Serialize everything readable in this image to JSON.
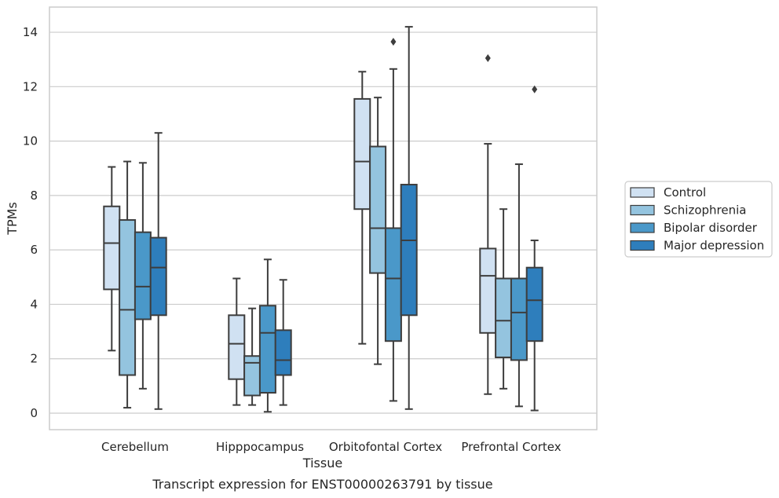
{
  "chart_data": {
    "type": "box",
    "title": "Transcript expression for ENST00000263791 by tissue",
    "xlabel": "Tissue",
    "ylabel": "TPMs",
    "ylim": [
      -0.6,
      14.9
    ],
    "yticks": [
      0,
      2,
      4,
      6,
      8,
      10,
      12,
      14
    ],
    "grid": true,
    "legend_position": "right",
    "categories": [
      "Cerebellum",
      "Hipppocampus",
      "Orbitofontal Cortex",
      "Prefrontal Cortex"
    ],
    "series": [
      {
        "name": "Control",
        "color": "#d0e1f2",
        "boxes": [
          {
            "whislo": 2.3,
            "q1": 4.55,
            "med": 6.25,
            "q3": 7.6,
            "whishi": 9.05,
            "fliers": []
          },
          {
            "whislo": 0.3,
            "q1": 1.25,
            "med": 2.55,
            "q3": 3.6,
            "whishi": 4.95,
            "fliers": []
          },
          {
            "whislo": 2.55,
            "q1": 7.5,
            "med": 9.25,
            "q3": 11.55,
            "whishi": 12.55,
            "fliers": []
          },
          {
            "whislo": 0.7,
            "q1": 2.95,
            "med": 5.05,
            "q3": 6.05,
            "whishi": 9.9,
            "fliers": [
              13.05
            ]
          }
        ]
      },
      {
        "name": "Schizophrenia",
        "color": "#94c4df",
        "boxes": [
          {
            "whislo": 0.2,
            "q1": 1.4,
            "med": 3.8,
            "q3": 7.1,
            "whishi": 9.25,
            "fliers": []
          },
          {
            "whislo": 0.3,
            "q1": 0.65,
            "med": 1.85,
            "q3": 2.1,
            "whishi": 3.85,
            "fliers": []
          },
          {
            "whislo": 1.8,
            "q1": 5.15,
            "med": 6.8,
            "q3": 9.8,
            "whishi": 11.6,
            "fliers": []
          },
          {
            "whislo": 0.9,
            "q1": 2.05,
            "med": 3.4,
            "q3": 4.95,
            "whishi": 7.5,
            "fliers": []
          }
        ]
      },
      {
        "name": "Bipolar disorder",
        "color": "#4a98c9",
        "boxes": [
          {
            "whislo": 0.9,
            "q1": 3.45,
            "med": 4.65,
            "q3": 6.65,
            "whishi": 9.2,
            "fliers": []
          },
          {
            "whislo": 0.05,
            "q1": 0.75,
            "med": 2.95,
            "q3": 3.95,
            "whishi": 5.65,
            "fliers": []
          },
          {
            "whislo": 0.45,
            "q1": 2.65,
            "med": 4.95,
            "q3": 6.8,
            "whishi": 12.65,
            "fliers": [
              13.65
            ]
          },
          {
            "whislo": 0.25,
            "q1": 1.95,
            "med": 3.7,
            "q3": 4.95,
            "whishi": 9.15,
            "fliers": []
          }
        ]
      },
      {
        "name": "Major depression",
        "color": "#2e7ebc",
        "boxes": [
          {
            "whislo": 0.15,
            "q1": 3.6,
            "med": 5.35,
            "q3": 6.45,
            "whishi": 10.3,
            "fliers": []
          },
          {
            "whislo": 0.3,
            "q1": 1.4,
            "med": 1.95,
            "q3": 3.05,
            "whishi": 4.9,
            "fliers": []
          },
          {
            "whislo": 0.15,
            "q1": 3.6,
            "med": 6.35,
            "q3": 8.4,
            "whishi": 14.2,
            "fliers": []
          },
          {
            "whislo": 0.1,
            "q1": 2.65,
            "med": 4.15,
            "q3": 5.35,
            "whishi": 6.35,
            "fliers": [
              11.9
            ]
          }
        ]
      }
    ]
  }
}
